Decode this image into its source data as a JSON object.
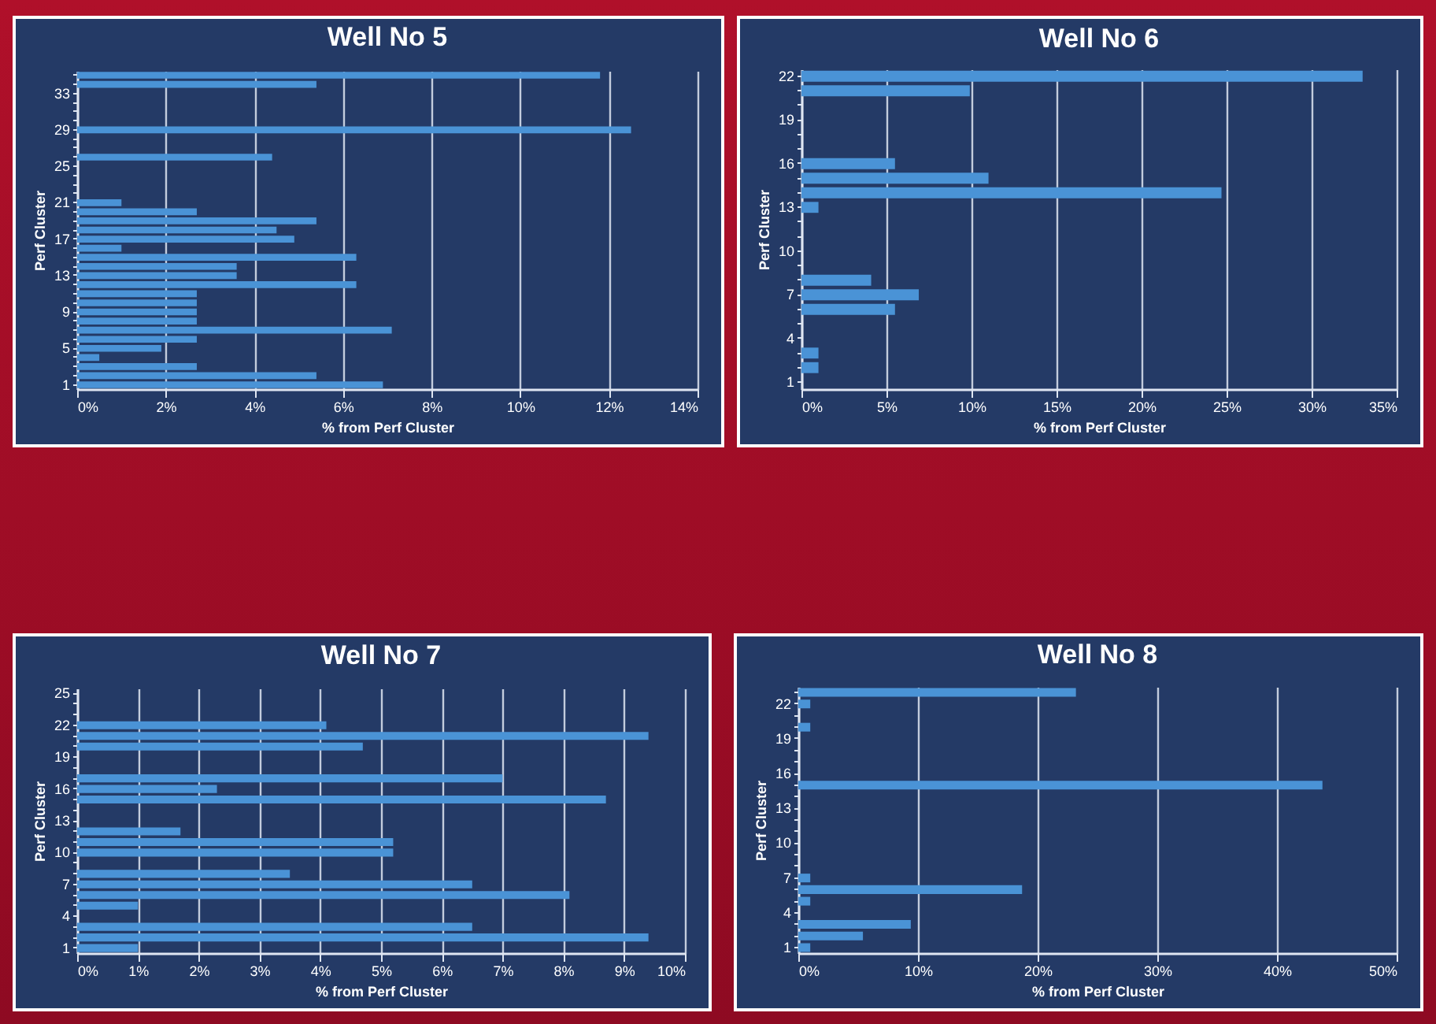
{
  "chart_data": [
    {
      "type": "bar",
      "orientation": "horizontal",
      "title": "Well No 5",
      "xlabel": "% from Perf Cluster",
      "ylabel": "Perf Cluster",
      "color": "#4a93d6",
      "grid": "x",
      "categories": [
        null,
        null,
        "33",
        null,
        null,
        null,
        "29",
        null,
        null,
        null,
        "25",
        null,
        null,
        null,
        "21",
        null,
        null,
        null,
        "17",
        null,
        null,
        null,
        "13",
        null,
        null,
        null,
        "9",
        null,
        null,
        null,
        "5",
        null,
        null,
        null,
        "1"
      ],
      "values": [
        11.8,
        5.4,
        null,
        null,
        null,
        null,
        12.5,
        null,
        null,
        4.4,
        null,
        null,
        null,
        null,
        1.0,
        2.7,
        5.4,
        4.5,
        4.9,
        1.0,
        6.3,
        3.6,
        3.6,
        6.3,
        2.7,
        2.7,
        2.7,
        2.7,
        7.1,
        2.7,
        1.9,
        0.5,
        2.7,
        5.4,
        6.9
      ],
      "xlim": [
        0,
        14
      ],
      "xticks": [
        {
          "value": 0,
          "label": "0%"
        },
        {
          "value": 2,
          "label": "2%"
        },
        {
          "value": 4,
          "label": "4%"
        },
        {
          "value": 6,
          "label": "6%"
        },
        {
          "value": 8,
          "label": "8%"
        },
        {
          "value": 10,
          "label": "10%"
        },
        {
          "value": 12,
          "label": "12%"
        },
        {
          "value": 14,
          "label": "14%"
        }
      ]
    },
    {
      "type": "bar",
      "orientation": "horizontal",
      "title": "Well No 6",
      "xlabel": "% from Perf Cluster",
      "ylabel": "Perf Cluster",
      "color": "#4a93d6",
      "grid": "x",
      "categories": [
        "22",
        null,
        null,
        "19",
        null,
        null,
        "16",
        null,
        null,
        "13",
        null,
        null,
        "10",
        null,
        null,
        "7",
        null,
        null,
        "4",
        null,
        null,
        "1"
      ],
      "values": [
        33,
        9.9,
        null,
        null,
        null,
        null,
        5.5,
        11,
        24.7,
        1.0,
        null,
        null,
        null,
        null,
        4.1,
        6.9,
        5.5,
        null,
        null,
        1.0,
        1.0,
        null
      ],
      "xlim": [
        0,
        35
      ],
      "xticks": [
        {
          "value": 0,
          "label": "0%"
        },
        {
          "value": 5,
          "label": "5%"
        },
        {
          "value": 10,
          "label": "10%"
        },
        {
          "value": 15,
          "label": "15%"
        },
        {
          "value": 20,
          "label": "20%"
        },
        {
          "value": 25,
          "label": "25%"
        },
        {
          "value": 30,
          "label": "30%"
        },
        {
          "value": 35,
          "label": "35%"
        }
      ]
    },
    {
      "type": "bar",
      "orientation": "horizontal",
      "title": "Well No 7",
      "xlabel": "% from Perf Cluster",
      "ylabel": "Perf Cluster",
      "color": "#4a93d6",
      "grid": "x",
      "categories": [
        "25",
        null,
        null,
        "22",
        null,
        null,
        "19",
        null,
        null,
        "16",
        null,
        null,
        "13",
        null,
        null,
        "10",
        null,
        null,
        "7",
        null,
        null,
        "4",
        null,
        null,
        "1"
      ],
      "values": [
        null,
        null,
        null,
        4.1,
        9.4,
        4.7,
        null,
        null,
        7.0,
        2.3,
        8.7,
        null,
        null,
        1.7,
        5.2,
        5.2,
        null,
        3.5,
        6.5,
        8.1,
        1.0,
        null,
        6.5,
        9.4,
        1.0
      ],
      "xlim": [
        0,
        10
      ],
      "xticks": [
        {
          "value": 0,
          "label": "0%"
        },
        {
          "value": 1,
          "label": "1%"
        },
        {
          "value": 2,
          "label": "2%"
        },
        {
          "value": 3,
          "label": "3%"
        },
        {
          "value": 4,
          "label": "4%"
        },
        {
          "value": 5,
          "label": "5%"
        },
        {
          "value": 6,
          "label": "6%"
        },
        {
          "value": 7,
          "label": "7%"
        },
        {
          "value": 8,
          "label": "8%"
        },
        {
          "value": 9,
          "label": "9%"
        },
        {
          "value": 10,
          "label": "10%"
        }
      ]
    },
    {
      "type": "bar",
      "orientation": "horizontal",
      "title": "Well No 8",
      "xlabel": "% from Perf Cluster",
      "ylabel": "Perf Cluster",
      "color": "#4a93d6",
      "grid": "x",
      "categories": [
        null,
        "22",
        null,
        null,
        "19",
        null,
        null,
        "16",
        null,
        null,
        "13",
        null,
        null,
        "10",
        null,
        null,
        "7",
        null,
        null,
        "4",
        null,
        null,
        "1"
      ],
      "values": [
        23.2,
        1.0,
        null,
        1.0,
        null,
        null,
        null,
        null,
        43.8,
        null,
        null,
        null,
        null,
        null,
        null,
        null,
        1.0,
        18.7,
        1.0,
        null,
        9.4,
        5.4,
        1.0
      ],
      "xlim": [
        0,
        50
      ],
      "xticks": [
        {
          "value": 0,
          "label": "0%"
        },
        {
          "value": 10,
          "label": "10%"
        },
        {
          "value": 20,
          "label": "20%"
        },
        {
          "value": 30,
          "label": "30%"
        },
        {
          "value": 40,
          "label": "40%"
        },
        {
          "value": 50,
          "label": "50%"
        }
      ]
    }
  ]
}
